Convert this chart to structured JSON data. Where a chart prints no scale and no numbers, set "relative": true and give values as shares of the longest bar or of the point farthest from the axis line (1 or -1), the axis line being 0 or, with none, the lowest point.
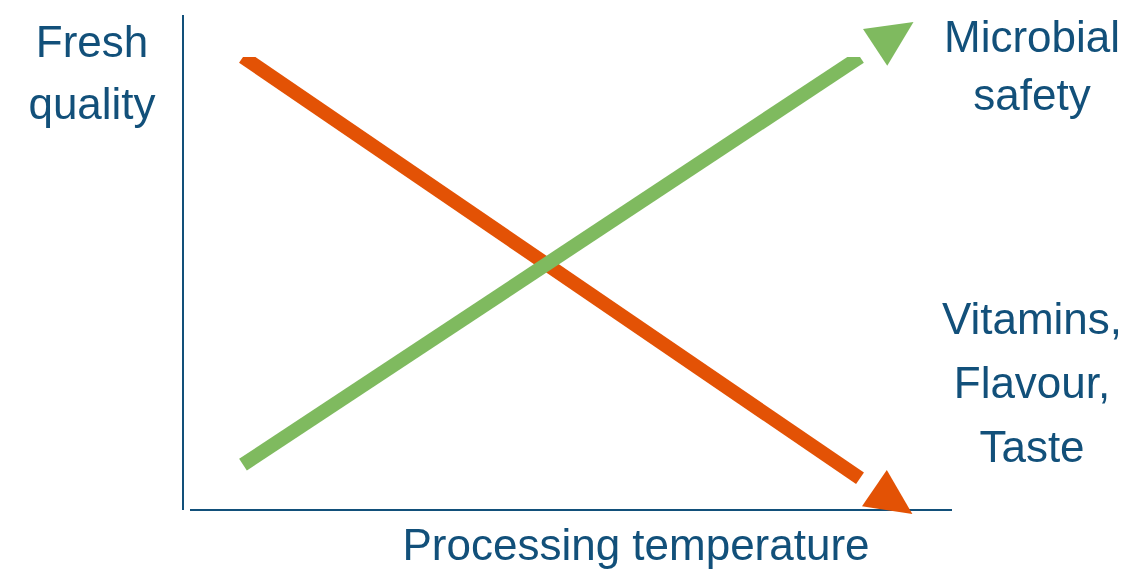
{
  "chart_data": {
    "type": "line",
    "relative": true,
    "xlabel": "Processing temperature",
    "ylabel": "Fresh quality",
    "categories": [
      null,
      null
    ],
    "grid": false,
    "legend": "right",
    "series": [
      {
        "name": "Microbial safety",
        "color": "#7fba5f",
        "values": [
          0.1,
          1
        ]
      },
      {
        "name": "Vitamins, Flavour, Taste",
        "color": "#e35205",
        "values": [
          1,
          0.07
        ]
      }
    ]
  }
}
